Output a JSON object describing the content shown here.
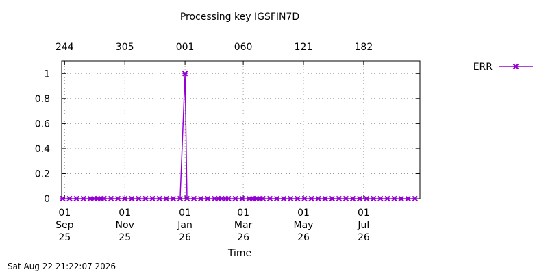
{
  "chart_data": {
    "type": "line",
    "title": "Processing key IGSFIN7D",
    "xlabel": "Time",
    "ylabel": "",
    "ylim": [
      0,
      1.1
    ],
    "yticks": [
      {
        "value": 0,
        "label": "0"
      },
      {
        "value": 0.2,
        "label": "0.2"
      },
      {
        "value": 0.4,
        "label": "0.4"
      },
      {
        "value": 0.6,
        "label": "0.6"
      },
      {
        "value": 0.8,
        "label": "0.8"
      },
      {
        "value": 1,
        "label": "1"
      }
    ],
    "xlim": [
      "2025-08-29",
      "2026-08-27"
    ],
    "xticks_bottom": [
      {
        "date": "2025-09-01",
        "lines": [
          "01",
          "Sep",
          "25"
        ]
      },
      {
        "date": "2025-11-01",
        "lines": [
          "01",
          "Nov",
          "25"
        ]
      },
      {
        "date": "2026-01-01",
        "lines": [
          "01",
          "Jan",
          "26"
        ]
      },
      {
        "date": "2026-03-01",
        "lines": [
          "01",
          "Mar",
          "26"
        ]
      },
      {
        "date": "2026-05-01",
        "lines": [
          "01",
          "May",
          "26"
        ]
      },
      {
        "date": "2026-07-01",
        "lines": [
          "01",
          "Jul",
          "26"
        ]
      }
    ],
    "xticks_top": [
      {
        "date": "2025-09-01",
        "label": "244"
      },
      {
        "date": "2025-11-01",
        "label": "305"
      },
      {
        "date": "2026-01-01",
        "label": "001"
      },
      {
        "date": "2026-03-01",
        "label": "060"
      },
      {
        "date": "2026-05-01",
        "label": "121"
      },
      {
        "date": "2026-07-01",
        "label": "182"
      }
    ],
    "grid": true,
    "legend_position": "top-right outside",
    "series": [
      {
        "name": "ERR",
        "color": "#9400d3",
        "marker": "x-cross",
        "points": [
          {
            "x": "2025-08-30",
            "y": 0
          },
          {
            "x": "2025-09-06",
            "y": 0
          },
          {
            "x": "2025-09-13",
            "y": 0
          },
          {
            "x": "2025-09-20",
            "y": 0
          },
          {
            "x": "2025-09-27",
            "y": 0
          },
          {
            "x": "2025-10-01",
            "y": 0
          },
          {
            "x": "2025-10-04",
            "y": 0
          },
          {
            "x": "2025-10-08",
            "y": 0
          },
          {
            "x": "2025-10-11",
            "y": 0
          },
          {
            "x": "2025-10-18",
            "y": 0
          },
          {
            "x": "2025-10-25",
            "y": 0
          },
          {
            "x": "2025-11-01",
            "y": 0
          },
          {
            "x": "2025-11-08",
            "y": 0
          },
          {
            "x": "2025-11-15",
            "y": 0
          },
          {
            "x": "2025-11-22",
            "y": 0
          },
          {
            "x": "2025-11-29",
            "y": 0
          },
          {
            "x": "2025-12-06",
            "y": 0
          },
          {
            "x": "2025-12-13",
            "y": 0
          },
          {
            "x": "2025-12-20",
            "y": 0
          },
          {
            "x": "2025-12-27",
            "y": 0
          },
          {
            "x": "2026-01-01",
            "y": 1
          },
          {
            "x": "2026-01-03",
            "y": 0
          },
          {
            "x": "2026-01-10",
            "y": 0
          },
          {
            "x": "2026-01-17",
            "y": 0
          },
          {
            "x": "2026-01-24",
            "y": 0
          },
          {
            "x": "2026-01-31",
            "y": 0
          },
          {
            "x": "2026-02-04",
            "y": 0
          },
          {
            "x": "2026-02-07",
            "y": 0
          },
          {
            "x": "2026-02-11",
            "y": 0
          },
          {
            "x": "2026-02-14",
            "y": 0
          },
          {
            "x": "2026-02-21",
            "y": 0
          },
          {
            "x": "2026-02-28",
            "y": 0
          },
          {
            "x": "2026-03-07",
            "y": 0
          },
          {
            "x": "2026-03-11",
            "y": 0
          },
          {
            "x": "2026-03-14",
            "y": 0
          },
          {
            "x": "2026-03-18",
            "y": 0
          },
          {
            "x": "2026-03-21",
            "y": 0
          },
          {
            "x": "2026-03-28",
            "y": 0
          },
          {
            "x": "2026-04-04",
            "y": 0
          },
          {
            "x": "2026-04-11",
            "y": 0
          },
          {
            "x": "2026-04-18",
            "y": 0
          },
          {
            "x": "2026-04-25",
            "y": 0
          },
          {
            "x": "2026-05-02",
            "y": 0
          },
          {
            "x": "2026-05-09",
            "y": 0
          },
          {
            "x": "2026-05-16",
            "y": 0
          },
          {
            "x": "2026-05-23",
            "y": 0
          },
          {
            "x": "2026-05-30",
            "y": 0
          },
          {
            "x": "2026-06-06",
            "y": 0
          },
          {
            "x": "2026-06-13",
            "y": 0
          },
          {
            "x": "2026-06-20",
            "y": 0
          },
          {
            "x": "2026-06-27",
            "y": 0
          },
          {
            "x": "2026-07-04",
            "y": 0
          },
          {
            "x": "2026-07-11",
            "y": 0
          },
          {
            "x": "2026-07-18",
            "y": 0
          },
          {
            "x": "2026-07-25",
            "y": 0
          },
          {
            "x": "2026-08-01",
            "y": 0
          },
          {
            "x": "2026-08-08",
            "y": 0
          },
          {
            "x": "2026-08-15",
            "y": 0
          },
          {
            "x": "2026-08-22",
            "y": 0
          }
        ]
      }
    ]
  },
  "footer": {
    "timestamp": "Sat Aug 22 21:22:07 2026"
  }
}
